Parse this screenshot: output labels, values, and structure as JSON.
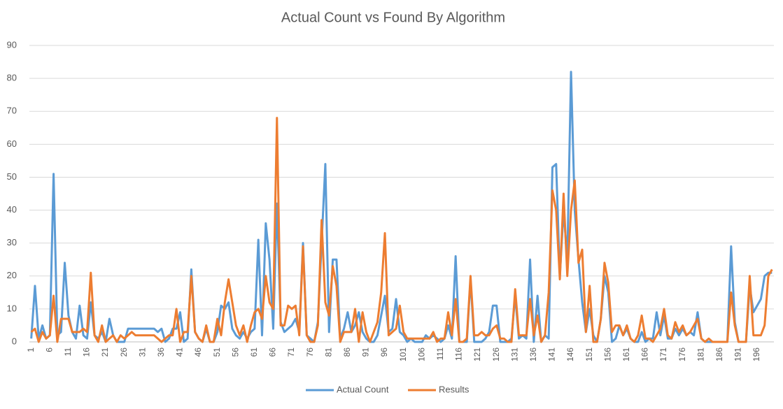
{
  "chart_data": {
    "type": "line",
    "title": "Actual Count vs Found By Algorithm",
    "categories": [
      1,
      null,
      null,
      null,
      null,
      6,
      null,
      null,
      null,
      null,
      11,
      null,
      null,
      null,
      null,
      16,
      null,
      null,
      null,
      null,
      21,
      null,
      null,
      null,
      null,
      26,
      null,
      null,
      null,
      null,
      31,
      null,
      null,
      null,
      null,
      36,
      null,
      null,
      null,
      null,
      41,
      null,
      null,
      null,
      null,
      46,
      null,
      null,
      null,
      null,
      51,
      null,
      null,
      null,
      null,
      56,
      null,
      null,
      null,
      null,
      61,
      null,
      null,
      null,
      null,
      66,
      null,
      null,
      null,
      null,
      71,
      null,
      null,
      null,
      null,
      76,
      null,
      null,
      null,
      null,
      81,
      null,
      null,
      null,
      null,
      86,
      null,
      null,
      null,
      null,
      91,
      null,
      null,
      null,
      null,
      96,
      null,
      null,
      null,
      null,
      101,
      null,
      null,
      null,
      null,
      106,
      null,
      null,
      null,
      null,
      111,
      null,
      null,
      null,
      null,
      116,
      null,
      null,
      null,
      null,
      121,
      null,
      null,
      null,
      null,
      126,
      null,
      null,
      null,
      null,
      131,
      null,
      null,
      null,
      null,
      136,
      null,
      null,
      null,
      null,
      141,
      null,
      null,
      null,
      null,
      146,
      null,
      null,
      null,
      null,
      151,
      null,
      null,
      null,
      null,
      156,
      null,
      null,
      null,
      null,
      161,
      null,
      null,
      null,
      null,
      166,
      null,
      null,
      null,
      null,
      171,
      null,
      null,
      null,
      null,
      176,
      null,
      null,
      null,
      null,
      181,
      null,
      null,
      null,
      null,
      186,
      null,
      null,
      null,
      null,
      191,
      null,
      null,
      null,
      null,
      196,
      null,
      null,
      null,
      null
    ],
    "series": [
      {
        "name": "Actual Count",
        "color": "#5b9bd5",
        "values": [
          1,
          17,
          1,
          5,
          1,
          2,
          51,
          2,
          3,
          24,
          8,
          3,
          1,
          11,
          2,
          1,
          12,
          2,
          1,
          3,
          0,
          7,
          2,
          0,
          0,
          0,
          4,
          4,
          4,
          4,
          4,
          4,
          4,
          4,
          3,
          4,
          0,
          1,
          4,
          4,
          9,
          0,
          1,
          22,
          3,
          1,
          0,
          4,
          0,
          0,
          3,
          11,
          10,
          12,
          4,
          2,
          1,
          3,
          1,
          3,
          4,
          31,
          2,
          36,
          25,
          4,
          42,
          6,
          3,
          4,
          5,
          7,
          3,
          30,
          2,
          1,
          0,
          6,
          30,
          54,
          3,
          25,
          25,
          1,
          4,
          9,
          3,
          5,
          9,
          3,
          1,
          0,
          0,
          2,
          8,
          14,
          3,
          4,
          13,
          3,
          2,
          0,
          1,
          0,
          0,
          0,
          2,
          1,
          2,
          1,
          0,
          1,
          5,
          1,
          26,
          0,
          0,
          0,
          19,
          0,
          0,
          0,
          1,
          3,
          11,
          11,
          0,
          0,
          0,
          1,
          14,
          1,
          2,
          1,
          25,
          0,
          14,
          0,
          2,
          1,
          53,
          54,
          20,
          40,
          25,
          82,
          40,
          25,
          12,
          3,
          10,
          2,
          0,
          7,
          20,
          15,
          0,
          1,
          5,
          2,
          4,
          1,
          0,
          0,
          3,
          0,
          1,
          1,
          9,
          2,
          8,
          1,
          1,
          4,
          2,
          4,
          2,
          3,
          2,
          9,
          1,
          0,
          0,
          0,
          0,
          0,
          0,
          0,
          29,
          6,
          0,
          0,
          0,
          17,
          9,
          11,
          13,
          20,
          21,
          21
        ]
      },
      {
        "name": "Results",
        "color": "#ed7d31",
        "values": [
          3,
          4,
          0,
          3,
          1,
          2,
          14,
          0,
          7,
          7,
          7,
          3,
          3,
          3,
          4,
          3,
          21,
          2,
          0,
          5,
          0,
          1,
          2,
          0,
          2,
          1,
          2,
          3,
          2,
          2,
          2,
          2,
          2,
          2,
          1,
          0,
          1,
          2,
          2,
          10,
          0,
          3,
          3,
          20,
          3,
          1,
          0,
          5,
          0,
          0,
          7,
          2,
          12,
          19,
          12,
          5,
          2,
          5,
          0,
          5,
          9,
          10,
          7,
          20,
          12,
          10,
          68,
          5,
          5,
          11,
          10,
          11,
          2,
          29,
          2,
          0,
          0,
          5,
          37,
          12,
          8,
          23,
          17,
          0,
          3,
          3,
          3,
          10,
          0,
          9,
          3,
          0,
          3,
          6,
          15,
          33,
          2,
          3,
          4,
          11,
          3,
          1,
          1,
          1,
          1,
          1,
          1,
          1,
          3,
          0,
          1,
          1,
          9,
          2,
          13,
          0,
          0,
          1,
          20,
          2,
          2,
          3,
          2,
          2,
          4,
          5,
          1,
          1,
          0,
          0,
          16,
          2,
          2,
          2,
          13,
          2,
          8,
          0,
          2,
          15,
          46,
          40,
          19,
          45,
          20,
          40,
          49,
          24,
          28,
          3,
          17,
          0,
          0,
          7,
          24,
          18,
          3,
          5,
          5,
          2,
          5,
          1,
          0,
          2,
          8,
          1,
          1,
          0,
          2,
          4,
          10,
          2,
          1,
          6,
          3,
          5,
          2,
          3,
          5,
          7,
          1,
          0,
          1,
          0,
          0,
          0,
          0,
          0,
          15,
          5,
          0,
          0,
          0,
          20,
          2,
          2,
          2,
          5,
          20,
          22
        ]
      }
    ],
    "ylim": [
      0,
      90
    ],
    "yticks": [
      0,
      10,
      20,
      30,
      40,
      50,
      60,
      70,
      80,
      90
    ],
    "grid": true,
    "legend": "bottom"
  }
}
